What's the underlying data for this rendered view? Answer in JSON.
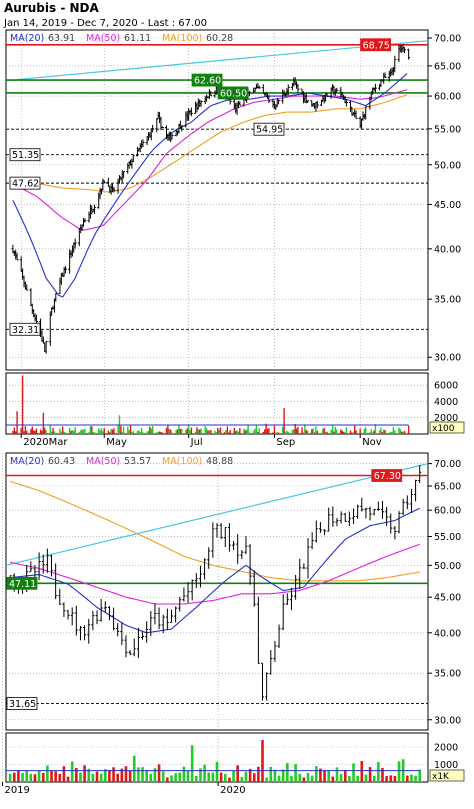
{
  "header": {
    "title": "Aurubis - NDA",
    "subtitle": "Jan 14, 2019 - Dec 7, 2020 - Last : 67.00"
  },
  "colors": {
    "bar": "#000000",
    "ma20": "#2233cc",
    "ma50": "#dd22dd",
    "ma100": "#f0a020",
    "trend": "#44c8e8",
    "red_level": "#e01818",
    "green_level": "#108010",
    "vol_up": "#22cc22",
    "vol_down": "#e01818",
    "vol_avg": "#2233cc",
    "grid": "#999999"
  },
  "chart_data": [
    {
      "type": "ohlc",
      "name": "daily",
      "ma_legend": [
        {
          "label": "MA(20)",
          "value": "63.91",
          "color": "#2233cc"
        },
        {
          "label": "MA(50)",
          "value": "61.11",
          "color": "#dd22dd"
        },
        {
          "label": "MA(100)",
          "value": "60.28",
          "color": "#f0a020"
        }
      ],
      "y_ticks": [
        "70.00",
        "65.00",
        "60.00",
        "55.00",
        "50.00",
        "45.00",
        "40.00",
        "35.00",
        "30.00"
      ],
      "y_tick_values": [
        70,
        65,
        60,
        55,
        50,
        45,
        40,
        35,
        30
      ],
      "ylim": [
        29,
        71.5
      ],
      "log_scale": true,
      "x_ticks": [
        "2020Mar",
        "May",
        "Jul",
        "Sep",
        "Nov"
      ],
      "x_tick_dates": [
        "2020-03-02",
        "2020-05-01",
        "2020-07-01",
        "2020-09-01",
        "2020-11-02"
      ],
      "x_range": [
        "2020-02-20",
        "2020-12-21"
      ],
      "price_path": [
        [
          "2020-02-25",
          40.0
        ],
        [
          "2020-03-03",
          37.0
        ],
        [
          "2020-03-10",
          34.0
        ],
        [
          "2020-03-16",
          32.0
        ],
        [
          "2020-03-19",
          30.5
        ],
        [
          "2020-03-24",
          34.0
        ],
        [
          "2020-03-31",
          37.0
        ],
        [
          "2020-04-08",
          40.0
        ],
        [
          "2020-04-16",
          43.0
        ],
        [
          "2020-04-24",
          45.0
        ],
        [
          "2020-05-01",
          48.0
        ],
        [
          "2020-05-07",
          46.5
        ],
        [
          "2020-05-12",
          48.0
        ],
        [
          "2020-05-19",
          50.0
        ],
        [
          "2020-05-26",
          52.0
        ],
        [
          "2020-06-02",
          54.0
        ],
        [
          "2020-06-09",
          56.5
        ],
        [
          "2020-06-16",
          53.5
        ],
        [
          "2020-06-23",
          55.0
        ],
        [
          "2020-06-30",
          57.0
        ],
        [
          "2020-07-07",
          58.5
        ],
        [
          "2020-07-14",
          60.0
        ],
        [
          "2020-07-21",
          61.0
        ],
        [
          "2020-07-28",
          60.0
        ],
        [
          "2020-08-04",
          58.0
        ],
        [
          "2020-08-11",
          59.5
        ],
        [
          "2020-08-18",
          61.5
        ],
        [
          "2020-08-25",
          60.0
        ],
        [
          "2020-09-01",
          58.5
        ],
        [
          "2020-09-08",
          60.5
        ],
        [
          "2020-09-15",
          62.0
        ],
        [
          "2020-09-22",
          60.0
        ],
        [
          "2020-09-29",
          58.5
        ],
        [
          "2020-10-06",
          59.5
        ],
        [
          "2020-10-13",
          61.0
        ],
        [
          "2020-10-20",
          60.0
        ],
        [
          "2020-10-27",
          57.5
        ],
        [
          "2020-11-02",
          55.5
        ],
        [
          "2020-11-06",
          58.0
        ],
        [
          "2020-11-10",
          60.5
        ],
        [
          "2020-11-17",
          62.5
        ],
        [
          "2020-11-24",
          63.5
        ],
        [
          "2020-12-01",
          68.5
        ],
        [
          "2020-12-04",
          67.5
        ],
        [
          "2020-12-07",
          67.0
        ]
      ],
      "ma20_path": [
        [
          "2020-02-25",
          45.5
        ],
        [
          "2020-03-09",
          41.0
        ],
        [
          "2020-03-20",
          37.0
        ],
        [
          "2020-03-31",
          35.0
        ],
        [
          "2020-04-10",
          37.0
        ],
        [
          "2020-04-24",
          41.5
        ],
        [
          "2020-05-08",
          45.0
        ],
        [
          "2020-05-22",
          48.5
        ],
        [
          "2020-06-05",
          52.0
        ],
        [
          "2020-06-19",
          54.5
        ],
        [
          "2020-07-03",
          56.0
        ],
        [
          "2020-07-17",
          58.5
        ],
        [
          "2020-07-31",
          59.5
        ],
        [
          "2020-08-14",
          59.5
        ],
        [
          "2020-08-28",
          60.0
        ],
        [
          "2020-09-11",
          60.0
        ],
        [
          "2020-09-25",
          60.5
        ],
        [
          "2020-10-09",
          60.0
        ],
        [
          "2020-10-23",
          59.5
        ],
        [
          "2020-11-06",
          58.5
        ],
        [
          "2020-11-20",
          60.5
        ],
        [
          "2020-12-07",
          63.9
        ]
      ],
      "ma50_path": [
        [
          "2020-02-25",
          47.5
        ],
        [
          "2020-03-13",
          46.0
        ],
        [
          "2020-03-31",
          43.5
        ],
        [
          "2020-04-15",
          42.0
        ],
        [
          "2020-04-30",
          42.5
        ],
        [
          "2020-05-15",
          45.0
        ],
        [
          "2020-06-01",
          48.0
        ],
        [
          "2020-06-15",
          51.5
        ],
        [
          "2020-07-01",
          54.0
        ],
        [
          "2020-07-15",
          56.0
        ],
        [
          "2020-08-03",
          58.0
        ],
        [
          "2020-08-17",
          59.0
        ],
        [
          "2020-09-01",
          59.5
        ],
        [
          "2020-09-15",
          60.0
        ],
        [
          "2020-10-01",
          60.0
        ],
        [
          "2020-10-15",
          60.0
        ],
        [
          "2020-11-02",
          59.5
        ],
        [
          "2020-11-16",
          59.8
        ],
        [
          "2020-12-07",
          61.1
        ]
      ],
      "ma100_path": [
        [
          "2020-02-25",
          48.0
        ],
        [
          "2020-03-16",
          47.5
        ],
        [
          "2020-04-01",
          47.0
        ],
        [
          "2020-04-20",
          46.8
        ],
        [
          "2020-05-05",
          46.5
        ],
        [
          "2020-05-20",
          47.0
        ],
        [
          "2020-06-05",
          48.5
        ],
        [
          "2020-06-22",
          50.5
        ],
        [
          "2020-07-08",
          52.5
        ],
        [
          "2020-07-24",
          54.5
        ],
        [
          "2020-08-10",
          56.0
        ],
        [
          "2020-08-25",
          57.0
        ],
        [
          "2020-09-10",
          57.5
        ],
        [
          "2020-09-28",
          57.5
        ],
        [
          "2020-10-15",
          58.0
        ],
        [
          "2020-11-02",
          58.0
        ],
        [
          "2020-11-20",
          59.0
        ],
        [
          "2020-12-07",
          60.3
        ]
      ],
      "trendline": [
        [
          "2020-02-20",
          62.5
        ],
        [
          "2020-12-21",
          69.5
        ]
      ],
      "levels": [
        {
          "label": "68.75",
          "value": 68.75,
          "color": "#e01818",
          "style": "solid"
        },
        {
          "label": "62.60",
          "value": 62.6,
          "color": "#108010",
          "style": "solid"
        },
        {
          "label": "60.50",
          "value": 60.5,
          "color": "#108010",
          "style": "solid"
        },
        {
          "label": "54.95",
          "value": 54.95,
          "color": "#000000",
          "style": "dashed"
        },
        {
          "label": "51.35",
          "value": 51.35,
          "color": "#000000",
          "style": "dashed"
        },
        {
          "label": "47.62",
          "value": 47.62,
          "color": "#000000",
          "style": "dashed"
        },
        {
          "label": "32.31",
          "value": 32.31,
          "color": "#000000",
          "style": "dashed"
        }
      ],
      "volume": {
        "y_ticks": [
          "6000",
          "4000",
          "2000"
        ],
        "y_tick_values": [
          6000,
          4000,
          2000
        ],
        "ylim": [
          0,
          7500
        ],
        "unit": "x100",
        "avg_level": 1100
      }
    },
    {
      "type": "ohlc",
      "name": "weekly",
      "ma_legend": [
        {
          "label": "MA(20)",
          "value": "60.43",
          "color": "#2233cc"
        },
        {
          "label": "MA(50)",
          "value": "53.57",
          "color": "#dd22dd"
        },
        {
          "label": "MA(100)",
          "value": "48.88",
          "color": "#f0a020"
        }
      ],
      "y_ticks": [
        "70.00",
        "65.00",
        "60.00",
        "55.00",
        "50.00",
        "45.00",
        "40.00",
        "35.00",
        "30.00"
      ],
      "y_tick_values": [
        70,
        65,
        60,
        55,
        50,
        45,
        40,
        35,
        30
      ],
      "ylim": [
        29,
        72.5
      ],
      "log_scale": true,
      "x_ticks": [
        "2019",
        "2020"
      ],
      "x_tick_dates": [
        "2019-01-01",
        "2020-01-01"
      ],
      "x_range": [
        "2019-01-07",
        "2020-12-21"
      ],
      "price_path": [
        [
          "2019-01-14",
          48.0
        ],
        [
          "2019-02-04",
          47.5
        ],
        [
          "2019-02-25",
          49.0
        ],
        [
          "2019-03-18",
          50.5
        ],
        [
          "2019-04-01",
          46.0
        ],
        [
          "2019-04-22",
          43.0
        ],
        [
          "2019-05-13",
          40.0
        ],
        [
          "2019-06-03",
          42.0
        ],
        [
          "2019-06-24",
          44.0
        ],
        [
          "2019-07-15",
          40.0
        ],
        [
          "2019-08-05",
          37.5
        ],
        [
          "2019-08-26",
          40.0
        ],
        [
          "2019-09-16",
          42.0
        ],
        [
          "2019-10-07",
          41.0
        ],
        [
          "2019-10-28",
          44.5
        ],
        [
          "2019-11-18",
          46.5
        ],
        [
          "2019-12-09",
          50.0
        ],
        [
          "2019-12-23",
          56.0
        ],
        [
          "2020-01-13",
          55.5
        ],
        [
          "2020-02-03",
          53.0
        ],
        [
          "2020-02-17",
          52.0
        ],
        [
          "2020-03-02",
          45.0
        ],
        [
          "2020-03-09",
          36.0
        ],
        [
          "2020-03-16",
          32.0
        ],
        [
          "2020-03-30",
          36.5
        ],
        [
          "2020-04-20",
          43.0
        ],
        [
          "2020-05-11",
          47.0
        ],
        [
          "2020-06-08",
          54.0
        ],
        [
          "2020-07-06",
          58.5
        ],
        [
          "2020-08-03",
          59.0
        ],
        [
          "2020-08-31",
          60.5
        ],
        [
          "2020-09-28",
          59.0
        ],
        [
          "2020-10-26",
          56.5
        ],
        [
          "2020-11-16",
          62.0
        ],
        [
          "2020-12-07",
          67.0
        ]
      ],
      "ma20_path": [
        [
          "2019-01-14",
          48.0
        ],
        [
          "2019-03-04",
          48.5
        ],
        [
          "2019-04-22",
          47.0
        ],
        [
          "2019-06-10",
          43.5
        ],
        [
          "2019-07-29",
          41.0
        ],
        [
          "2019-09-02",
          40.0
        ],
        [
          "2019-10-14",
          40.5
        ],
        [
          "2019-11-25",
          43.5
        ],
        [
          "2020-01-13",
          47.5
        ],
        [
          "2020-02-17",
          50.0
        ],
        [
          "2020-03-16",
          48.0
        ],
        [
          "2020-04-20",
          46.0
        ],
        [
          "2020-05-25",
          46.5
        ],
        [
          "2020-06-29",
          50.5
        ],
        [
          "2020-08-03",
          54.5
        ],
        [
          "2020-09-14",
          57.0
        ],
        [
          "2020-10-26",
          58.0
        ],
        [
          "2020-12-07",
          60.4
        ]
      ],
      "ma50_path": [
        [
          "2019-01-14",
          50.5
        ],
        [
          "2019-03-04",
          49.5
        ],
        [
          "2019-04-22",
          48.0
        ],
        [
          "2019-06-10",
          46.5
        ],
        [
          "2019-07-29",
          45.0
        ],
        [
          "2019-09-16",
          44.0
        ],
        [
          "2019-11-04",
          44.0
        ],
        [
          "2019-12-23",
          44.5
        ],
        [
          "2020-02-10",
          45.5
        ],
        [
          "2020-03-30",
          45.5
        ],
        [
          "2020-05-18",
          46.0
        ],
        [
          "2020-07-06",
          47.5
        ],
        [
          "2020-08-24",
          49.5
        ],
        [
          "2020-10-12",
          51.5
        ],
        [
          "2020-12-07",
          53.6
        ]
      ],
      "ma100_path": [
        [
          "2019-01-14",
          66.0
        ],
        [
          "2019-03-04",
          64.0
        ],
        [
          "2019-04-22",
          61.5
        ],
        [
          "2019-06-10",
          59.0
        ],
        [
          "2019-07-29",
          56.5
        ],
        [
          "2019-09-16",
          54.0
        ],
        [
          "2019-11-04",
          51.5
        ],
        [
          "2019-12-23",
          50.0
        ],
        [
          "2020-02-10",
          49.0
        ],
        [
          "2020-03-30",
          48.0
        ],
        [
          "2020-05-18",
          47.5
        ],
        [
          "2020-07-06",
          47.5
        ],
        [
          "2020-08-24",
          47.5
        ],
        [
          "2020-10-12",
          48.0
        ],
        [
          "2020-12-07",
          48.9
        ]
      ],
      "trendline": [
        [
          "2019-01-07",
          50.0
        ],
        [
          "2020-12-21",
          70.0
        ]
      ],
      "levels": [
        {
          "label": "67.30",
          "value": 67.3,
          "color": "#e01818",
          "style": "solid"
        },
        {
          "label": "47.11",
          "value": 47.11,
          "color": "#108010",
          "style": "solid"
        },
        {
          "label": "31.65",
          "value": 31.65,
          "color": "#000000",
          "style": "dashed"
        }
      ],
      "volume": {
        "y_ticks": [
          "2000",
          "1000"
        ],
        "y_tick_values": [
          2000,
          1000
        ],
        "ylim": [
          0,
          2800
        ],
        "unit": "x1K",
        "avg_level": 650
      }
    }
  ]
}
